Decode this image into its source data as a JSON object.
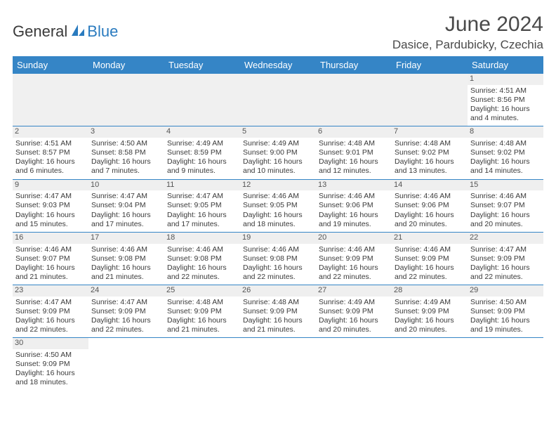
{
  "logo": {
    "text1": "General",
    "text2": "Blue"
  },
  "colors": {
    "header_bg": "#3585c6",
    "header_fg": "#ffffff",
    "rule": "#3585c6",
    "daybg": "#efefef"
  },
  "title": "June 2024",
  "location": "Dasice, Pardubicky, Czechia",
  "daynames": [
    "Sunday",
    "Monday",
    "Tuesday",
    "Wednesday",
    "Thursday",
    "Friday",
    "Saturday"
  ],
  "weeks": [
    [
      null,
      null,
      null,
      null,
      null,
      null,
      {
        "d": "1",
        "sr": "Sunrise: 4:51 AM",
        "ss": "Sunset: 8:56 PM",
        "dl1": "Daylight: 16 hours",
        "dl2": "and 4 minutes."
      }
    ],
    [
      {
        "d": "2",
        "sr": "Sunrise: 4:51 AM",
        "ss": "Sunset: 8:57 PM",
        "dl1": "Daylight: 16 hours",
        "dl2": "and 6 minutes."
      },
      {
        "d": "3",
        "sr": "Sunrise: 4:50 AM",
        "ss": "Sunset: 8:58 PM",
        "dl1": "Daylight: 16 hours",
        "dl2": "and 7 minutes."
      },
      {
        "d": "4",
        "sr": "Sunrise: 4:49 AM",
        "ss": "Sunset: 8:59 PM",
        "dl1": "Daylight: 16 hours",
        "dl2": "and 9 minutes."
      },
      {
        "d": "5",
        "sr": "Sunrise: 4:49 AM",
        "ss": "Sunset: 9:00 PM",
        "dl1": "Daylight: 16 hours",
        "dl2": "and 10 minutes."
      },
      {
        "d": "6",
        "sr": "Sunrise: 4:48 AM",
        "ss": "Sunset: 9:01 PM",
        "dl1": "Daylight: 16 hours",
        "dl2": "and 12 minutes."
      },
      {
        "d": "7",
        "sr": "Sunrise: 4:48 AM",
        "ss": "Sunset: 9:02 PM",
        "dl1": "Daylight: 16 hours",
        "dl2": "and 13 minutes."
      },
      {
        "d": "8",
        "sr": "Sunrise: 4:48 AM",
        "ss": "Sunset: 9:02 PM",
        "dl1": "Daylight: 16 hours",
        "dl2": "and 14 minutes."
      }
    ],
    [
      {
        "d": "9",
        "sr": "Sunrise: 4:47 AM",
        "ss": "Sunset: 9:03 PM",
        "dl1": "Daylight: 16 hours",
        "dl2": "and 15 minutes."
      },
      {
        "d": "10",
        "sr": "Sunrise: 4:47 AM",
        "ss": "Sunset: 9:04 PM",
        "dl1": "Daylight: 16 hours",
        "dl2": "and 17 minutes."
      },
      {
        "d": "11",
        "sr": "Sunrise: 4:47 AM",
        "ss": "Sunset: 9:05 PM",
        "dl1": "Daylight: 16 hours",
        "dl2": "and 17 minutes."
      },
      {
        "d": "12",
        "sr": "Sunrise: 4:46 AM",
        "ss": "Sunset: 9:05 PM",
        "dl1": "Daylight: 16 hours",
        "dl2": "and 18 minutes."
      },
      {
        "d": "13",
        "sr": "Sunrise: 4:46 AM",
        "ss": "Sunset: 9:06 PM",
        "dl1": "Daylight: 16 hours",
        "dl2": "and 19 minutes."
      },
      {
        "d": "14",
        "sr": "Sunrise: 4:46 AM",
        "ss": "Sunset: 9:06 PM",
        "dl1": "Daylight: 16 hours",
        "dl2": "and 20 minutes."
      },
      {
        "d": "15",
        "sr": "Sunrise: 4:46 AM",
        "ss": "Sunset: 9:07 PM",
        "dl1": "Daylight: 16 hours",
        "dl2": "and 20 minutes."
      }
    ],
    [
      {
        "d": "16",
        "sr": "Sunrise: 4:46 AM",
        "ss": "Sunset: 9:07 PM",
        "dl1": "Daylight: 16 hours",
        "dl2": "and 21 minutes."
      },
      {
        "d": "17",
        "sr": "Sunrise: 4:46 AM",
        "ss": "Sunset: 9:08 PM",
        "dl1": "Daylight: 16 hours",
        "dl2": "and 21 minutes."
      },
      {
        "d": "18",
        "sr": "Sunrise: 4:46 AM",
        "ss": "Sunset: 9:08 PM",
        "dl1": "Daylight: 16 hours",
        "dl2": "and 22 minutes."
      },
      {
        "d": "19",
        "sr": "Sunrise: 4:46 AM",
        "ss": "Sunset: 9:08 PM",
        "dl1": "Daylight: 16 hours",
        "dl2": "and 22 minutes."
      },
      {
        "d": "20",
        "sr": "Sunrise: 4:46 AM",
        "ss": "Sunset: 9:09 PM",
        "dl1": "Daylight: 16 hours",
        "dl2": "and 22 minutes."
      },
      {
        "d": "21",
        "sr": "Sunrise: 4:46 AM",
        "ss": "Sunset: 9:09 PM",
        "dl1": "Daylight: 16 hours",
        "dl2": "and 22 minutes."
      },
      {
        "d": "22",
        "sr": "Sunrise: 4:47 AM",
        "ss": "Sunset: 9:09 PM",
        "dl1": "Daylight: 16 hours",
        "dl2": "and 22 minutes."
      }
    ],
    [
      {
        "d": "23",
        "sr": "Sunrise: 4:47 AM",
        "ss": "Sunset: 9:09 PM",
        "dl1": "Daylight: 16 hours",
        "dl2": "and 22 minutes."
      },
      {
        "d": "24",
        "sr": "Sunrise: 4:47 AM",
        "ss": "Sunset: 9:09 PM",
        "dl1": "Daylight: 16 hours",
        "dl2": "and 22 minutes."
      },
      {
        "d": "25",
        "sr": "Sunrise: 4:48 AM",
        "ss": "Sunset: 9:09 PM",
        "dl1": "Daylight: 16 hours",
        "dl2": "and 21 minutes."
      },
      {
        "d": "26",
        "sr": "Sunrise: 4:48 AM",
        "ss": "Sunset: 9:09 PM",
        "dl1": "Daylight: 16 hours",
        "dl2": "and 21 minutes."
      },
      {
        "d": "27",
        "sr": "Sunrise: 4:49 AM",
        "ss": "Sunset: 9:09 PM",
        "dl1": "Daylight: 16 hours",
        "dl2": "and 20 minutes."
      },
      {
        "d": "28",
        "sr": "Sunrise: 4:49 AM",
        "ss": "Sunset: 9:09 PM",
        "dl1": "Daylight: 16 hours",
        "dl2": "and 20 minutes."
      },
      {
        "d": "29",
        "sr": "Sunrise: 4:50 AM",
        "ss": "Sunset: 9:09 PM",
        "dl1": "Daylight: 16 hours",
        "dl2": "and 19 minutes."
      }
    ],
    [
      {
        "d": "30",
        "sr": "Sunrise: 4:50 AM",
        "ss": "Sunset: 9:09 PM",
        "dl1": "Daylight: 16 hours",
        "dl2": "and 18 minutes."
      },
      null,
      null,
      null,
      null,
      null,
      null
    ]
  ]
}
